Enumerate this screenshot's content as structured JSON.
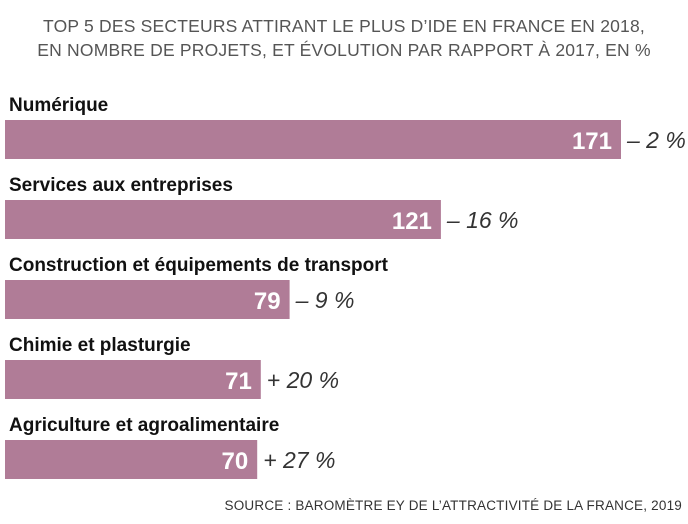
{
  "title_line1": "TOP 5 DES SECTEURS ATTIRANT LE PLUS D’IDE EN FRANCE EN 2018,",
  "title_line2": "EN NOMBRE DE PROJETS, ET ÉVOLUTION PAR RAPPORT À 2017, EN %",
  "source": "SOURCE : BAROMÈTRE EY DE L’ATTRACTIVITÉ DE LA FRANCE, 2019",
  "bar_color": "#b07c97",
  "chart_data": {
    "type": "bar",
    "orientation": "horizontal",
    "title": "TOP 5 DES SECTEURS ATTIRANT LE PLUS D’IDE EN FRANCE EN 2018, EN NOMBRE DE PROJETS, ET ÉVOLUTION PAR RAPPORT À 2017, EN %",
    "categories": [
      "Numérique",
      "Services aux entreprises",
      "Construction et équipements de transport",
      "Chimie et plasturgie",
      "Agriculture et agroalimentaire"
    ],
    "values": [
      171,
      121,
      79,
      71,
      70
    ],
    "changes": [
      "– 2 %",
      "– 16 %",
      "– 9 %",
      "+ 20 %",
      "+ 27 %"
    ],
    "xlim": [
      0,
      171
    ],
    "grid": false,
    "legend": "none"
  }
}
